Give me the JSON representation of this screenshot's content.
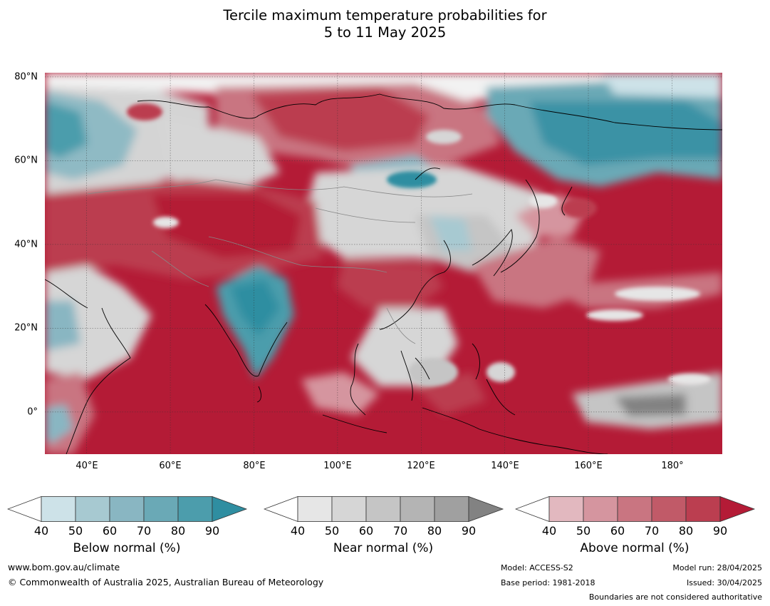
{
  "title": {
    "line1": "Tercile maximum temperature probabilities for",
    "line2": "5 to 11 May 2025"
  },
  "map": {
    "projection": "equirectangular",
    "lon_range": [
      30,
      192
    ],
    "lat_range": [
      -10,
      81
    ],
    "lat_labels": [
      {
        "lat": 80,
        "label": "80°N"
      },
      {
        "lat": 60,
        "label": "60°N"
      },
      {
        "lat": 40,
        "label": "40°N"
      },
      {
        "lat": 20,
        "label": "20°N"
      },
      {
        "lat": 0,
        "label": "0°"
      }
    ],
    "lon_labels": [
      {
        "lon": 40,
        "label": "40°E"
      },
      {
        "lon": 60,
        "label": "60°E"
      },
      {
        "lon": 80,
        "label": "80°E"
      },
      {
        "lon": 100,
        "label": "100°E"
      },
      {
        "lon": 120,
        "label": "120°E"
      },
      {
        "lon": 140,
        "label": "140°E"
      },
      {
        "lon": 160,
        "label": "160°E"
      },
      {
        "lon": 180,
        "label": "180°"
      }
    ],
    "ocean_color": "#b41b36",
    "gridline_color": "#333333",
    "coastline_color": "#000000",
    "border_color": "#888888"
  },
  "colorbars": [
    {
      "title": "Below normal (%)",
      "ticks": [
        "40",
        "50",
        "60",
        "70",
        "80",
        "90"
      ],
      "colors": [
        "#cde2e8",
        "#a7c9d1",
        "#89b6c2",
        "#6aa9b6",
        "#4c9dac",
        "#2f8ea1"
      ]
    },
    {
      "title": "Near normal (%)",
      "ticks": [
        "40",
        "50",
        "60",
        "70",
        "80",
        "90"
      ],
      "colors": [
        "#e6e6e6",
        "#d6d6d6",
        "#c5c5c5",
        "#b4b4b4",
        "#a0a0a0",
        "#828282"
      ]
    },
    {
      "title": "Above normal (%)",
      "ticks": [
        "40",
        "50",
        "60",
        "70",
        "80",
        "90"
      ],
      "colors": [
        "#e2b8bf",
        "#d5959f",
        "#c97581",
        "#c15a68",
        "#bb3e50",
        "#b41b36"
      ]
    }
  ],
  "footer": {
    "url": "www.bom.gov.au/climate",
    "copyright": "© Commonwealth of Australia 2025, Australian Bureau of Meteorology",
    "model": "Model: ACCESS-S2",
    "base_period": "Base period: 1981-2018",
    "model_run": "Model run: 28/04/2025",
    "issued": "Issued: 30/04/2025",
    "disclaimer": "Boundaries are not considered authoritative"
  }
}
